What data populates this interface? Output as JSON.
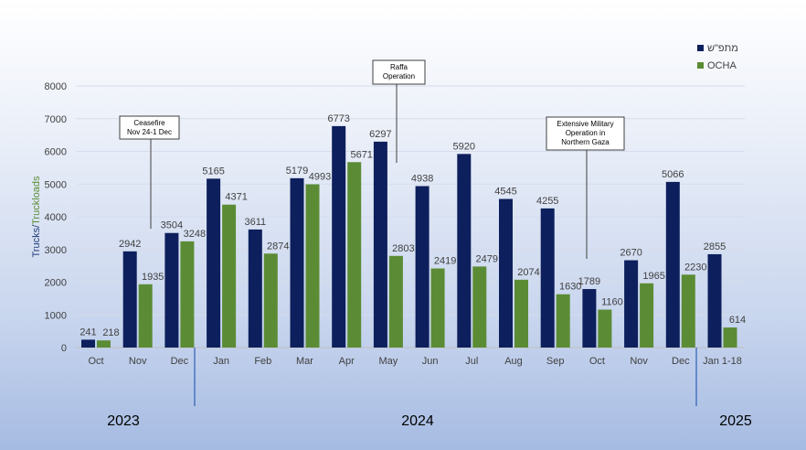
{
  "chart_data": {
    "type": "bar",
    "categories": [
      "Oct",
      "Nov",
      "Dec",
      "Jan",
      "Feb",
      "Mar",
      "Apr",
      "May",
      "Jun",
      "Jul",
      "Aug",
      "Sep",
      "Oct",
      "Nov",
      "Dec",
      "Jan 1-18"
    ],
    "series": [
      {
        "name": "מתפ\"ש",
        "color": "#0d1f5c",
        "values": [
          241,
          2942,
          3504,
          5165,
          3611,
          5179,
          6773,
          6297,
          4938,
          5920,
          4545,
          4255,
          1789,
          2670,
          5066,
          2855
        ]
      },
      {
        "name": "OCHA",
        "color": "#5b8c35",
        "values": [
          218,
          1935,
          3248,
          4371,
          2874,
          4993,
          5671,
          2803,
          2419,
          2479,
          2074,
          1630,
          1160,
          1965,
          2230,
          614
        ]
      }
    ],
    "ylabel_part1": "Trucks/",
    "ylabel_part2": "Truckloads",
    "ylim": [
      0,
      8000
    ],
    "yticks": [
      0,
      1000,
      2000,
      3000,
      4000,
      5000,
      6000,
      7000,
      8000
    ],
    "legend": "top-right",
    "years": [
      "2023",
      "2024",
      "2025"
    ],
    "annotations": [
      {
        "lines": [
          "Ceasefire",
          "Nov 24-1 Dec"
        ],
        "category_index": 1
      },
      {
        "lines": [
          "Raffa",
          "Operation"
        ],
        "category_index": 7
      },
      {
        "lines": [
          "Extensive Military",
          "Operation in",
          "Northern Gaza"
        ],
        "category_index": 12
      }
    ]
  }
}
